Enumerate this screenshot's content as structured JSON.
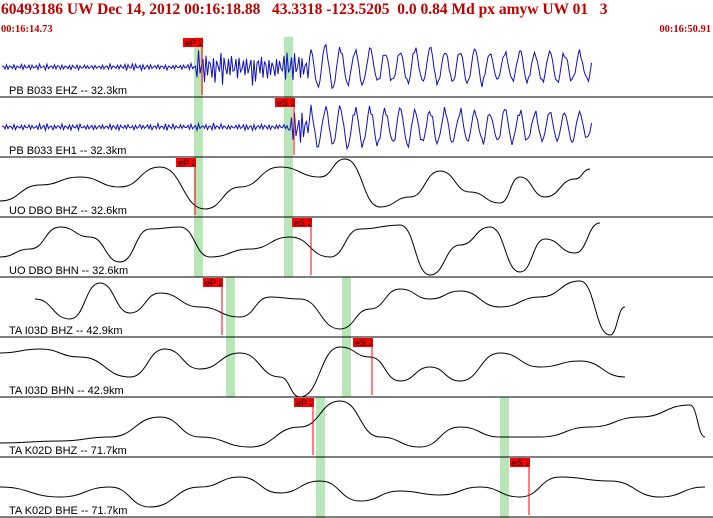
{
  "header": {
    "title": "60493186 UW Dec 14, 2012 00:16:18.88   43.3318 -123.5205  0.0 0.84 Md px amyw UW 01   3",
    "time_start": "00:16:14.73",
    "time_end": "00:16:50.91"
  },
  "colors": {
    "title": "#c00000",
    "trace": "#1010c0",
    "pick_flag": "#ff0000",
    "pick_window": "#b8e6b8",
    "divider": "#000000"
  },
  "traces": [
    {
      "label": "PB B033 EHZ -- 32.3km",
      "color": "#1010c0",
      "pick": "eP 2",
      "kind": "eq"
    },
    {
      "label": "PB B033 EH1 -- 32.3km",
      "color": "#1010c0",
      "pick": "eS 2",
      "kind": "eq"
    },
    {
      "label": "UO DBO BHZ -- 32.6km",
      "color": "#000000",
      "pick": "eP 2",
      "kind": "slow"
    },
    {
      "label": "UO DBO BHN -- 32.6km",
      "color": "#000000",
      "pick": "eS 2",
      "kind": "slow"
    },
    {
      "label": "TA I03D BHZ -- 42.9km",
      "color": "#000000",
      "pick": "eP 2",
      "kind": "slow"
    },
    {
      "label": "TA I03D BHN -- 42.9km",
      "color": "#000000",
      "pick": "eS 2",
      "kind": "slow"
    },
    {
      "label": "TA K02D BHZ -- 71.7km",
      "color": "#000000",
      "pick": "eP 2",
      "kind": "slow"
    },
    {
      "label": "TA K02D BHE -- 71.7km",
      "color": "#000000",
      "pick": "eS 2",
      "kind": "slow"
    }
  ]
}
